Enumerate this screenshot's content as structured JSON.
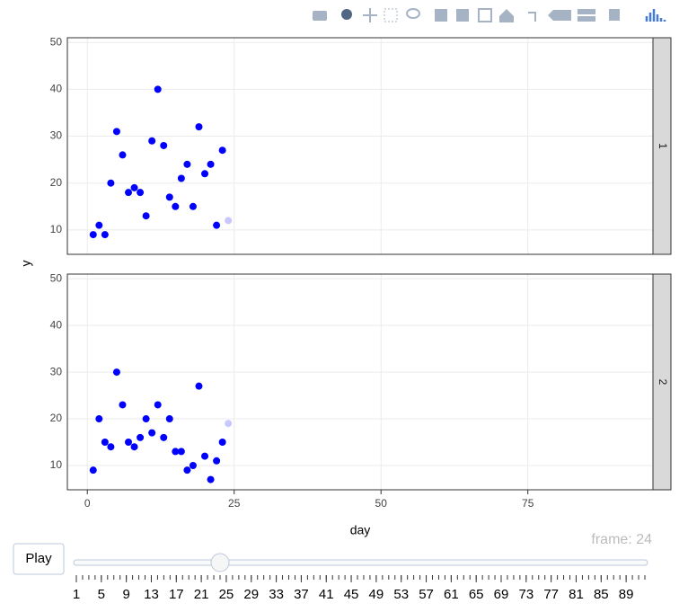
{
  "chart_data": {
    "type": "scatter",
    "xlabel": "day",
    "ylabel": "y",
    "xlim": [
      -3.4,
      96.3
    ],
    "xticks": [
      0,
      25,
      50,
      75
    ],
    "ylim": [
      4.8,
      51
    ],
    "yticks": [
      10,
      20,
      30,
      40,
      50
    ],
    "grid": true,
    "panels": [
      {
        "strip": "1",
        "x": [
          1,
          2,
          3,
          4,
          5,
          6,
          7,
          8,
          9,
          10,
          11,
          12,
          13,
          14,
          15,
          16,
          17,
          18,
          19,
          20,
          21,
          22,
          23,
          24
        ],
        "values": [
          9,
          11,
          9,
          20,
          31,
          26,
          18,
          19,
          18,
          13,
          29,
          40,
          28,
          17,
          15,
          21,
          24,
          15,
          32,
          22,
          24,
          11,
          27,
          12
        ],
        "colors": [
          "#0000ff",
          "#0000ff",
          "#0000ff",
          "#0000ff",
          "#0000ff",
          "#0000ff",
          "#0000ff",
          "#0000ff",
          "#0000ff",
          "#0000ff",
          "#0000ff",
          "#0000ff",
          "#0000ff",
          "#0000ff",
          "#0000ff",
          "#0000ff",
          "#0000ff",
          "#0000ff",
          "#0000ff",
          "#0000ff",
          "#0000ff",
          "#0000ff",
          "#0000ff",
          "#c8c8ff"
        ]
      },
      {
        "strip": "2",
        "x": [
          1,
          2,
          3,
          4,
          5,
          6,
          7,
          8,
          9,
          10,
          11,
          12,
          13,
          14,
          15,
          16,
          17,
          18,
          19,
          20,
          21,
          22,
          23,
          24
        ],
        "values": [
          9,
          20,
          15,
          14,
          30,
          23,
          15,
          14,
          16,
          20,
          17,
          23,
          16,
          20,
          13,
          13,
          9,
          10,
          27,
          12,
          7,
          11,
          15,
          19
        ],
        "colors": [
          "#0000ff",
          "#0000ff",
          "#0000ff",
          "#0000ff",
          "#0000ff",
          "#0000ff",
          "#0000ff",
          "#0000ff",
          "#0000ff",
          "#0000ff",
          "#0000ff",
          "#0000ff",
          "#0000ff",
          "#0000ff",
          "#0000ff",
          "#0000ff",
          "#0000ff",
          "#0000ff",
          "#0000ff",
          "#0000ff",
          "#0000ff",
          "#0000ff",
          "#0000ff",
          "#c8c8ff"
        ]
      }
    ]
  },
  "animation": {
    "button": "Play",
    "current_label": "frame: 24",
    "value": 24,
    "range": [
      1,
      92
    ],
    "ticks": [
      1,
      5,
      9,
      13,
      17,
      21,
      25,
      29,
      33,
      37,
      41,
      45,
      49,
      53,
      57,
      61,
      65,
      69,
      73,
      77,
      81,
      85,
      89
    ]
  }
}
